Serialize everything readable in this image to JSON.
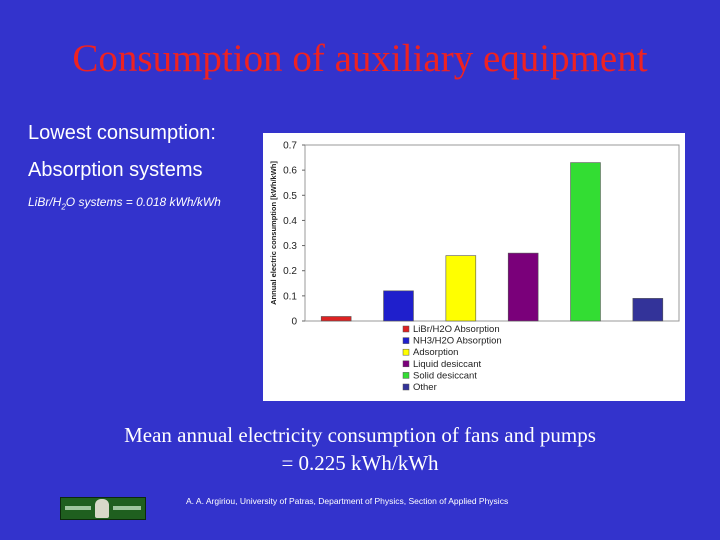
{
  "slide": {
    "title": "Consumption of auxiliary equipment",
    "lead_line1": "Lowest consumption:",
    "lead_line2": "Absorption systems",
    "formula_prefix": "LiBr/H",
    "formula_sub": "2",
    "formula_suffix": "O systems = 0.018 kWh/kWh",
    "bottom_line1": "Mean annual electricity consumption of fans and pumps",
    "bottom_line2": "= 0.225 kWh/kWh",
    "footer": "A. A. Argiriou, University of Patras, Department of Physics, Section of Applied Physics"
  },
  "chart_data": {
    "type": "bar",
    "ylabel": "Annual electric consumption [kWh/kWh]",
    "ylim": [
      0,
      0.7
    ],
    "yticks": [
      "0",
      "0.1",
      "0.2",
      "0.3",
      "0.4",
      "0.5",
      "0.6",
      "0.7"
    ],
    "grid": false,
    "legend_position": "bottom",
    "categories": [
      "LiBr/H2O Absorption",
      "NH3/H2O Absorption",
      "Adsorption",
      "Liquid desiccant",
      "Solid desiccant",
      "Other"
    ],
    "values": [
      0.018,
      0.12,
      0.26,
      0.27,
      0.63,
      0.09
    ],
    "colors": [
      "#dd2222",
      "#1f1fcc",
      "#ffff00",
      "#7a007a",
      "#33dd33",
      "#333399"
    ]
  }
}
